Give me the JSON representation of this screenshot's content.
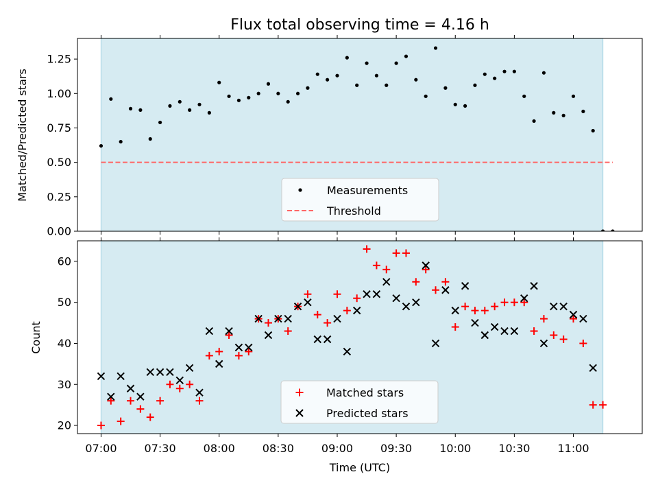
{
  "figure_title": "Flux total observing time = 4.16 h",
  "colors": {
    "band": "#add8e6",
    "measurement": "#000000",
    "threshold": "#ff6666",
    "matched": "#ff0000",
    "predicted": "#000000"
  },
  "chart_data": [
    {
      "type": "scatter",
      "title": "Flux total observing time = 4.16 h",
      "xlabel": "",
      "ylabel": "Matched/Predicted stars",
      "xlim": [
        "06:48",
        "11:35"
      ],
      "ylim": [
        0,
        1.4
      ],
      "yticks": [
        0.0,
        0.25,
        0.5,
        0.75,
        1.0,
        1.25
      ],
      "ytick_labels": [
        "0.00",
        "0.25",
        "0.50",
        "0.75",
        "1.00",
        "1.25"
      ],
      "band": [
        "07:00",
        "11:15"
      ],
      "legend": [
        "Measurements",
        "Threshold"
      ],
      "legend_position": "lower-center",
      "threshold": {
        "name": "Threshold",
        "value": 0.5,
        "x": [
          "07:00",
          "11:20"
        ]
      },
      "series": [
        {
          "name": "Measurements",
          "x": [
            "07:00",
            "07:05",
            "07:10",
            "07:15",
            "07:20",
            "07:25",
            "07:30",
            "07:35",
            "07:40",
            "07:45",
            "07:50",
            "07:55",
            "08:00",
            "08:05",
            "08:10",
            "08:15",
            "08:20",
            "08:25",
            "08:30",
            "08:35",
            "08:40",
            "08:45",
            "08:50",
            "08:55",
            "09:00",
            "09:05",
            "09:10",
            "09:15",
            "09:20",
            "09:25",
            "09:30",
            "09:35",
            "09:40",
            "09:45",
            "09:50",
            "09:55",
            "10:00",
            "10:05",
            "10:10",
            "10:15",
            "10:20",
            "10:25",
            "10:30",
            "10:35",
            "10:40",
            "10:45",
            "10:50",
            "10:55",
            "11:00",
            "11:05",
            "11:10",
            "11:15",
            "11:20"
          ],
          "values": [
            0.62,
            0.96,
            0.65,
            0.89,
            0.88,
            0.67,
            0.79,
            0.91,
            0.94,
            0.88,
            0.92,
            0.86,
            1.08,
            0.98,
            0.95,
            0.97,
            1.0,
            1.07,
            1.0,
            0.94,
            1.0,
            1.04,
            1.14,
            1.1,
            1.13,
            1.26,
            1.06,
            1.22,
            1.13,
            1.06,
            1.22,
            1.27,
            1.1,
            0.98,
            1.33,
            1.04,
            0.92,
            0.91,
            1.06,
            1.14,
            1.11,
            1.16,
            1.16,
            0.98,
            0.8,
            1.15,
            0.86,
            0.84,
            0.98,
            0.87,
            0.73,
            0.0,
            0.0
          ]
        }
      ]
    },
    {
      "type": "scatter",
      "title": "",
      "xlabel": "Time (UTC)",
      "ylabel": "Count",
      "xlim": [
        "06:48",
        "11:35"
      ],
      "ylim": [
        18,
        65
      ],
      "yticks": [
        20,
        30,
        40,
        50,
        60
      ],
      "ytick_labels": [
        "20",
        "30",
        "40",
        "50",
        "60"
      ],
      "xticks": [
        "07:00",
        "07:30",
        "08:00",
        "08:30",
        "09:00",
        "09:30",
        "10:00",
        "10:30",
        "11:00"
      ],
      "band": [
        "07:00",
        "11:15"
      ],
      "legend": [
        "Matched stars",
        "Predicted stars"
      ],
      "legend_position": "lower-center",
      "series": [
        {
          "name": "Matched stars",
          "marker": "+",
          "x": [
            "07:00",
            "07:05",
            "07:10",
            "07:15",
            "07:20",
            "07:25",
            "07:30",
            "07:35",
            "07:40",
            "07:45",
            "07:50",
            "07:55",
            "08:00",
            "08:05",
            "08:10",
            "08:15",
            "08:20",
            "08:25",
            "08:30",
            "08:35",
            "08:40",
            "08:45",
            "08:50",
            "08:55",
            "09:00",
            "09:05",
            "09:10",
            "09:15",
            "09:20",
            "09:25",
            "09:30",
            "09:35",
            "09:40",
            "09:45",
            "09:50",
            "09:55",
            "10:00",
            "10:05",
            "10:10",
            "10:15",
            "10:20",
            "10:25",
            "10:30",
            "10:35",
            "10:40",
            "10:45",
            "10:50",
            "10:55",
            "11:00",
            "11:05",
            "11:10",
            "11:15"
          ],
          "values": [
            20,
            26,
            21,
            26,
            24,
            22,
            26,
            30,
            29,
            30,
            26,
            37,
            38,
            42,
            37,
            38,
            46,
            45,
            46,
            43,
            49,
            52,
            47,
            45,
            52,
            48,
            51,
            63,
            59,
            58,
            62,
            62,
            55,
            58,
            53,
            55,
            44,
            49,
            48,
            48,
            49,
            50,
            50,
            50,
            43,
            46,
            42,
            41,
            46,
            40,
            25,
            25
          ]
        },
        {
          "name": "Predicted stars",
          "marker": "x",
          "x": [
            "07:00",
            "07:05",
            "07:10",
            "07:15",
            "07:20",
            "07:25",
            "07:30",
            "07:35",
            "07:40",
            "07:45",
            "07:50",
            "07:55",
            "08:00",
            "08:05",
            "08:10",
            "08:15",
            "08:20",
            "08:25",
            "08:30",
            "08:35",
            "08:40",
            "08:45",
            "08:50",
            "08:55",
            "09:00",
            "09:05",
            "09:10",
            "09:15",
            "09:20",
            "09:25",
            "09:30",
            "09:35",
            "09:40",
            "09:45",
            "09:50",
            "09:55",
            "10:00",
            "10:05",
            "10:10",
            "10:15",
            "10:20",
            "10:25",
            "10:30",
            "10:35",
            "10:40",
            "10:45",
            "10:50",
            "10:55",
            "11:00",
            "11:05",
            "11:10"
          ],
          "values": [
            32,
            27,
            32,
            29,
            27,
            33,
            33,
            33,
            31,
            34,
            28,
            43,
            35,
            43,
            39,
            39,
            46,
            42,
            46,
            46,
            49,
            50,
            41,
            41,
            46,
            38,
            48,
            52,
            52,
            55,
            51,
            49,
            50,
            59,
            40,
            53,
            48,
            54,
            45,
            42,
            44,
            43,
            43,
            51,
            54,
            40,
            49,
            49,
            47,
            46,
            34
          ]
        }
      ]
    }
  ]
}
